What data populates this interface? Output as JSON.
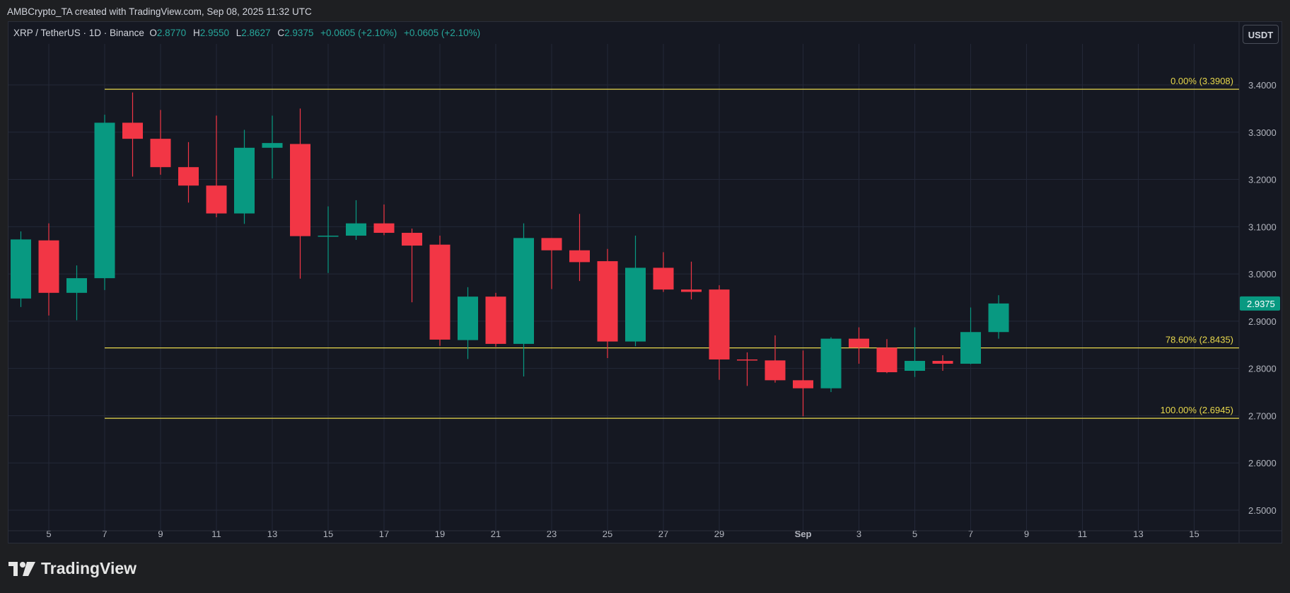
{
  "header": {
    "caption": "AMBCrypto_TA created with TradingView.com, Sep 08, 2025 11:32 UTC"
  },
  "legend": {
    "symbol": "XRP / TetherUS · 1D · Binance",
    "o_label": "O",
    "o_value": "2.8770",
    "h_label": "H",
    "h_value": "2.9550",
    "l_label": "L",
    "l_value": "2.8627",
    "c_label": "C",
    "c_value": "2.9375",
    "change1": "+0.0605 (+2.10%)",
    "change2": "+0.0605 (+2.10%)"
  },
  "currency_button": "USDT",
  "footer": {
    "brand": "TradingView"
  },
  "colors": {
    "up": "#089981",
    "down": "#f23645",
    "fib": "#e8d84c",
    "grid": "#232838",
    "axis_text": "#b2b5be"
  },
  "chart_data": {
    "type": "candlestick",
    "title": "",
    "xlabel": "",
    "ylabel": "",
    "ylim": [
      2.45,
      3.5
    ],
    "y_ticks": [
      "3.4000",
      "3.3000",
      "3.2000",
      "3.1000",
      "3.0000",
      "2.9000",
      "2.8000",
      "2.7000",
      "2.6000",
      "2.5000"
    ],
    "x_ticks": [
      "5",
      "7",
      "9",
      "11",
      "13",
      "15",
      "17",
      "19",
      "21",
      "23",
      "25",
      "27",
      "29",
      "Sep",
      "3",
      "5",
      "7",
      "9",
      "11",
      "13",
      "15"
    ],
    "x_tick_dates": [
      "2025-08-05",
      "2025-08-07",
      "2025-08-09",
      "2025-08-11",
      "2025-08-13",
      "2025-08-15",
      "2025-08-17",
      "2025-08-19",
      "2025-08-21",
      "2025-08-23",
      "2025-08-25",
      "2025-08-27",
      "2025-08-29",
      "2025-09-01",
      "2025-09-03",
      "2025-09-05",
      "2025-09-07",
      "2025-09-09",
      "2025-09-11",
      "2025-09-13",
      "2025-09-15"
    ],
    "last_price_label": "2.9375",
    "candles": [
      {
        "date": "2025-08-04",
        "open": 2.948,
        "high": 3.09,
        "low": 2.93,
        "close": 3.073
      },
      {
        "date": "2025-08-05",
        "open": 3.071,
        "high": 3.107,
        "low": 2.912,
        "close": 2.96
      },
      {
        "date": "2025-08-06",
        "open": 2.96,
        "high": 3.018,
        "low": 2.902,
        "close": 2.991
      },
      {
        "date": "2025-08-07",
        "open": 2.991,
        "high": 3.337,
        "low": 2.966,
        "close": 3.32
      },
      {
        "date": "2025-08-08",
        "open": 3.32,
        "high": 3.384,
        "low": 3.206,
        "close": 3.286
      },
      {
        "date": "2025-08-09",
        "open": 3.286,
        "high": 3.347,
        "low": 3.21,
        "close": 3.226
      },
      {
        "date": "2025-08-10",
        "open": 3.226,
        "high": 3.279,
        "low": 3.151,
        "close": 3.187
      },
      {
        "date": "2025-08-11",
        "open": 3.187,
        "high": 3.335,
        "low": 3.12,
        "close": 3.128
      },
      {
        "date": "2025-08-12",
        "open": 3.128,
        "high": 3.305,
        "low": 3.106,
        "close": 3.267
      },
      {
        "date": "2025-08-13",
        "open": 3.267,
        "high": 3.335,
        "low": 3.202,
        "close": 3.277
      },
      {
        "date": "2025-08-14",
        "open": 3.275,
        "high": 3.35,
        "low": 2.99,
        "close": 3.08
      },
      {
        "date": "2025-08-15",
        "open": 3.08,
        "high": 3.143,
        "low": 3.002,
        "close": 3.081
      },
      {
        "date": "2025-08-16",
        "open": 3.081,
        "high": 3.156,
        "low": 3.072,
        "close": 3.107
      },
      {
        "date": "2025-08-17",
        "open": 3.107,
        "high": 3.147,
        "low": 3.082,
        "close": 3.087
      },
      {
        "date": "2025-08-18",
        "open": 3.087,
        "high": 3.096,
        "low": 2.94,
        "close": 3.06
      },
      {
        "date": "2025-08-19",
        "open": 3.062,
        "high": 3.081,
        "low": 2.848,
        "close": 2.861
      },
      {
        "date": "2025-08-20",
        "open": 2.86,
        "high": 2.972,
        "low": 2.82,
        "close": 2.952
      },
      {
        "date": "2025-08-21",
        "open": 2.952,
        "high": 2.96,
        "low": 2.846,
        "close": 2.852
      },
      {
        "date": "2025-08-22",
        "open": 2.852,
        "high": 3.107,
        "low": 2.783,
        "close": 3.076
      },
      {
        "date": "2025-08-23",
        "open": 3.076,
        "high": 3.076,
        "low": 2.968,
        "close": 3.05
      },
      {
        "date": "2025-08-24",
        "open": 3.05,
        "high": 3.127,
        "low": 2.985,
        "close": 3.025
      },
      {
        "date": "2025-08-25",
        "open": 3.027,
        "high": 3.053,
        "low": 2.822,
        "close": 2.857
      },
      {
        "date": "2025-08-26",
        "open": 2.857,
        "high": 3.081,
        "low": 2.847,
        "close": 3.013
      },
      {
        "date": "2025-08-27",
        "open": 3.013,
        "high": 3.046,
        "low": 2.962,
        "close": 2.967
      },
      {
        "date": "2025-08-28",
        "open": 2.967,
        "high": 3.026,
        "low": 2.946,
        "close": 2.962
      },
      {
        "date": "2025-08-29",
        "open": 2.967,
        "high": 2.976,
        "low": 2.776,
        "close": 2.819
      },
      {
        "date": "2025-08-30",
        "open": 2.819,
        "high": 2.834,
        "low": 2.763,
        "close": 2.817
      },
      {
        "date": "2025-08-31",
        "open": 2.817,
        "high": 2.87,
        "low": 2.77,
        "close": 2.775
      },
      {
        "date": "2025-09-01",
        "open": 2.775,
        "high": 2.838,
        "low": 2.699,
        "close": 2.758
      },
      {
        "date": "2025-09-02",
        "open": 2.758,
        "high": 2.866,
        "low": 2.75,
        "close": 2.863
      },
      {
        "date": "2025-09-03",
        "open": 2.863,
        "high": 2.887,
        "low": 2.81,
        "close": 2.844
      },
      {
        "date": "2025-09-04",
        "open": 2.844,
        "high": 2.862,
        "low": 2.79,
        "close": 2.792
      },
      {
        "date": "2025-09-05",
        "open": 2.795,
        "high": 2.887,
        "low": 2.782,
        "close": 2.816
      },
      {
        "date": "2025-09-06",
        "open": 2.816,
        "high": 2.828,
        "low": 2.795,
        "close": 2.81
      },
      {
        "date": "2025-09-07",
        "open": 2.81,
        "high": 2.929,
        "low": 2.809,
        "close": 2.877
      },
      {
        "date": "2025-09-08",
        "open": 2.877,
        "high": 2.955,
        "low": 2.863,
        "close": 2.9375
      }
    ],
    "fib_levels": [
      {
        "label": "0.00% (3.3908)",
        "price": 3.3908,
        "start_date": "2025-08-07"
      },
      {
        "label": "78.60% (2.8435)",
        "price": 2.8435,
        "start_date": "2025-08-07"
      },
      {
        "label": "100.00% (2.6945)",
        "price": 2.6945,
        "start_date": "2025-08-07"
      }
    ]
  }
}
